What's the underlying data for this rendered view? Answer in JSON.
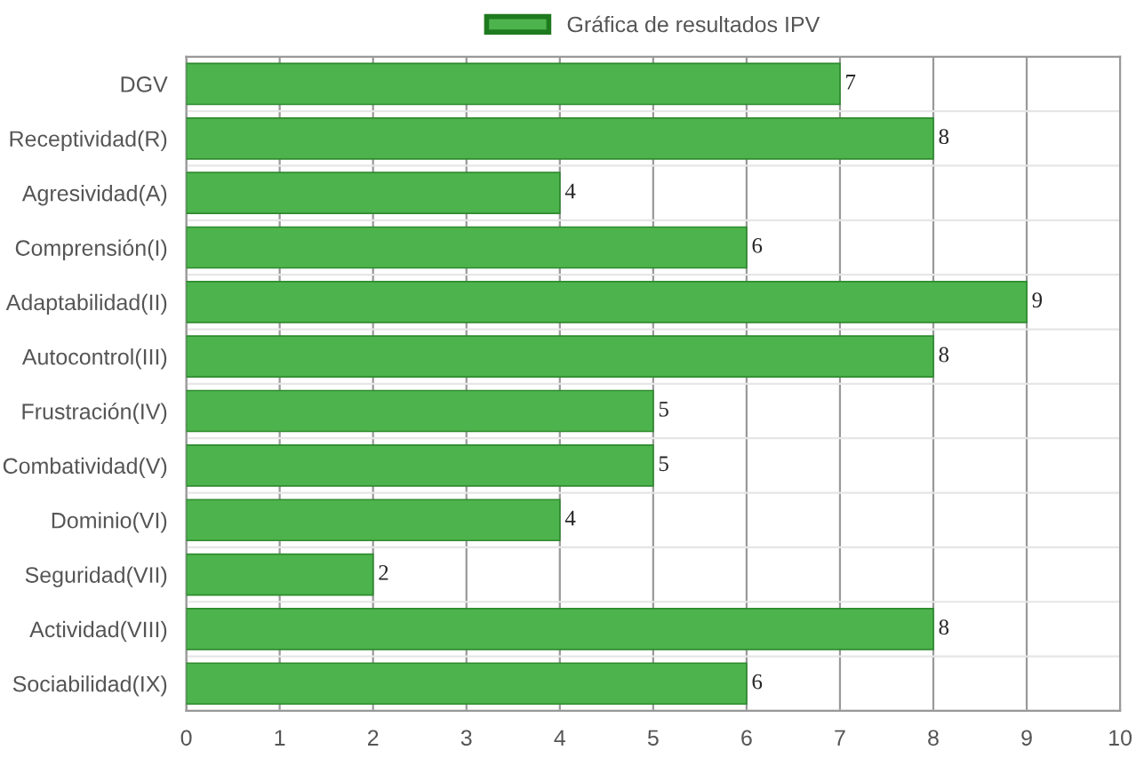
{
  "chart_data": {
    "type": "bar",
    "orientation": "horizontal",
    "categories": [
      "DGV",
      "Receptividad(R)",
      "Agresividad(A)",
      "Comprensión(I)",
      "Adaptabilidad(II)",
      "Autocontrol(III)",
      "Frustración(IV)",
      "Combatividad(V)",
      "Dominio(VI)",
      "Seguridad(VII)",
      "Actividad(VIII)",
      "Sociabilidad(IX)"
    ],
    "series": [
      {
        "name": "Gráfica de resultados IPV",
        "color": "#4db34d",
        "values": [
          7,
          8,
          4,
          6,
          9,
          8,
          5,
          5,
          4,
          2,
          8,
          6
        ]
      }
    ],
    "xlim": [
      0,
      10
    ],
    "xticks": [
      0,
      1,
      2,
      3,
      4,
      5,
      6,
      7,
      8,
      9,
      10
    ],
    "grid": true,
    "legend": "top",
    "data_labels": true
  }
}
